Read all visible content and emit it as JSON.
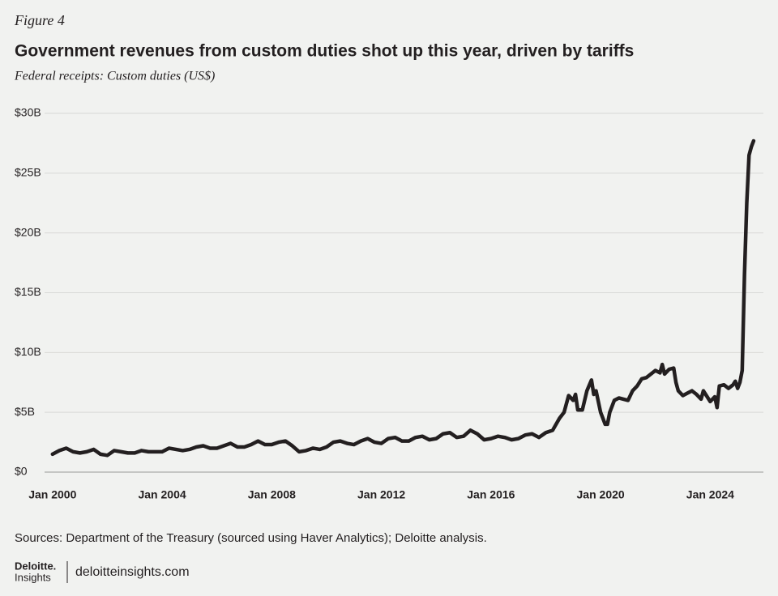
{
  "figure_label": "Figure 4",
  "chart_data": {
    "type": "line",
    "title": "Government revenues from custom duties shot up this year, driven by tariffs",
    "subtitle": "Federal receipts: Custom duties (US$)",
    "x": [
      "2000-01",
      "2000-04",
      "2000-07",
      "2000-10",
      "2001-01",
      "2001-04",
      "2001-07",
      "2001-10",
      "2002-01",
      "2002-04",
      "2002-07",
      "2002-10",
      "2003-01",
      "2003-04",
      "2003-07",
      "2003-10",
      "2004-01",
      "2004-04",
      "2004-07",
      "2004-10",
      "2005-01",
      "2005-04",
      "2005-07",
      "2005-10",
      "2006-01",
      "2006-04",
      "2006-07",
      "2006-10",
      "2007-01",
      "2007-04",
      "2007-07",
      "2007-10",
      "2008-01",
      "2008-04",
      "2008-07",
      "2008-10",
      "2009-01",
      "2009-04",
      "2009-07",
      "2009-10",
      "2010-01",
      "2010-04",
      "2010-07",
      "2010-10",
      "2011-01",
      "2011-04",
      "2011-07",
      "2011-10",
      "2012-01",
      "2012-04",
      "2012-07",
      "2012-10",
      "2013-01",
      "2013-04",
      "2013-07",
      "2013-10",
      "2014-01",
      "2014-04",
      "2014-07",
      "2014-10",
      "2015-01",
      "2015-04",
      "2015-07",
      "2015-10",
      "2016-01",
      "2016-04",
      "2016-07",
      "2016-10",
      "2017-01",
      "2017-04",
      "2017-07",
      "2017-10",
      "2018-01",
      "2018-04",
      "2018-07",
      "2018-09",
      "2018-11",
      "2019-01",
      "2019-02",
      "2019-03",
      "2019-05",
      "2019-07",
      "2019-09",
      "2019-10",
      "2019-11",
      "2020-01",
      "2020-03",
      "2020-04",
      "2020-05",
      "2020-07",
      "2020-09",
      "2021-01",
      "2021-03",
      "2021-05",
      "2021-07",
      "2021-09",
      "2022-01",
      "2022-03",
      "2022-04",
      "2022-05",
      "2022-07",
      "2022-09",
      "2022-10",
      "2022-11",
      "2023-01",
      "2023-03",
      "2023-05",
      "2023-07",
      "2023-09",
      "2023-10",
      "2024-01",
      "2024-03",
      "2024-04",
      "2024-05",
      "2024-07",
      "2024-09",
      "2024-11",
      "2024-12",
      "2025-01",
      "2025-02",
      "2025-03",
      "2025-04",
      "2025-05",
      "2025-06",
      "2025-07",
      "2025-08"
    ],
    "series": [
      {
        "name": "Custom duties",
        "color": "#231f20",
        "values": [
          1.5,
          1.8,
          2.0,
          1.7,
          1.6,
          1.7,
          1.9,
          1.5,
          1.4,
          1.8,
          1.7,
          1.6,
          1.6,
          1.8,
          1.7,
          1.7,
          1.7,
          2.0,
          1.9,
          1.8,
          1.9,
          2.1,
          2.2,
          2.0,
          2.0,
          2.2,
          2.4,
          2.1,
          2.1,
          2.3,
          2.6,
          2.3,
          2.3,
          2.5,
          2.6,
          2.2,
          1.7,
          1.8,
          2.0,
          1.9,
          2.1,
          2.5,
          2.6,
          2.4,
          2.3,
          2.6,
          2.8,
          2.5,
          2.4,
          2.8,
          2.9,
          2.6,
          2.6,
          2.9,
          3.0,
          2.7,
          2.8,
          3.2,
          3.3,
          2.9,
          3.0,
          3.5,
          3.2,
          2.7,
          2.8,
          3.0,
          2.9,
          2.7,
          2.8,
          3.1,
          3.2,
          2.9,
          3.3,
          3.5,
          4.5,
          5.0,
          6.4,
          6.0,
          6.5,
          5.2,
          5.2,
          6.8,
          7.7,
          6.5,
          6.8,
          5.0,
          4.0,
          4.0,
          5.0,
          6.0,
          6.2,
          6.0,
          6.8,
          7.2,
          7.8,
          7.9,
          8.5,
          8.3,
          9.0,
          8.2,
          8.6,
          8.7,
          7.5,
          6.8,
          6.4,
          6.6,
          6.8,
          6.5,
          6.1,
          6.8,
          5.9,
          6.3,
          5.4,
          7.2,
          7.3,
          7.0,
          7.3,
          7.6,
          7.0,
          7.5,
          8.5,
          16.5,
          22.5,
          26.5,
          27.2,
          27.7
        ]
      }
    ],
    "xlim": [
      "1999-01",
      "2026-01"
    ],
    "xticks": [
      {
        "value": "2000-01",
        "label": "Jan 2000"
      },
      {
        "value": "2004-01",
        "label": "Jan 2004"
      },
      {
        "value": "2008-01",
        "label": "Jan 2008"
      },
      {
        "value": "2012-01",
        "label": "Jan 2012"
      },
      {
        "value": "2016-01",
        "label": "Jan 2016"
      },
      {
        "value": "2020-01",
        "label": "Jan 2020"
      },
      {
        "value": "2024-01",
        "label": "Jan 2024"
      }
    ],
    "ylim": [
      0,
      30
    ],
    "yticks": [
      {
        "value": 0,
        "label": "$0"
      },
      {
        "value": 5,
        "label": "$5B"
      },
      {
        "value": 10,
        "label": "$10B"
      },
      {
        "value": 15,
        "label": "$15B"
      },
      {
        "value": 20,
        "label": "$20B"
      },
      {
        "value": 25,
        "label": "$25B"
      },
      {
        "value": 30,
        "label": "$30B"
      }
    ],
    "grid": true
  },
  "source": "Sources: Department of the Treasury (sourced using Haver Analytics); Deloitte analysis.",
  "brand": {
    "name": "Deloitte.",
    "sub": "Insights",
    "site": "deloitteinsights.com"
  }
}
